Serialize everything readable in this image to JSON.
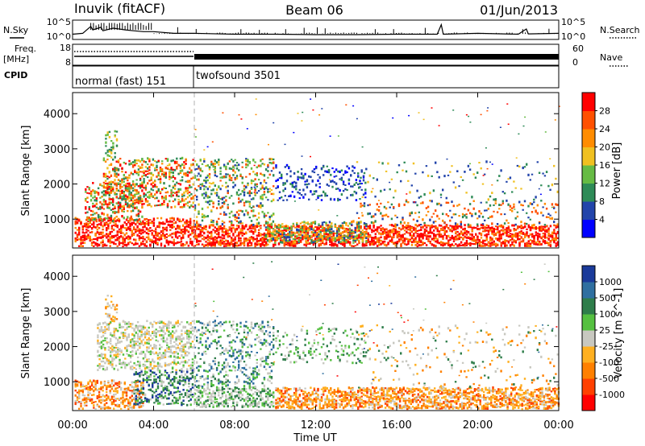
{
  "header": {
    "station": "Inuvik (fitACF)",
    "beam": "Beam 06",
    "date": "01/Jun/2013"
  },
  "colors": {
    "power_scale": [
      "#0000ff",
      "#2244aa",
      "#2e8b57",
      "#66bb44",
      "#f0c020",
      "#ff8c00",
      "#ff5000",
      "#ff0000"
    ],
    "velocity_scale": [
      "#1a3a9a",
      "#2f6fa0",
      "#2e7d4a",
      "#55c040",
      "#c8c8c0",
      "#ffb020",
      "#ff8000",
      "#ff4000",
      "#ff0000"
    ],
    "line": "#000000",
    "guide": "#b0b0b0"
  },
  "chart_data": [
    {
      "type": "line",
      "name": "nsky-panel",
      "left_label": "N.Sky",
      "right_label": "N.Search",
      "left_ticks": [
        "10^5",
        "10^0"
      ],
      "right_ticks": [
        "10^5",
        "10^0"
      ],
      "x_range_hours": [
        0,
        24
      ],
      "series": [
        {
          "x_hours": [
            0,
            0.5,
            0.9,
            1.0,
            1.4,
            1.5,
            2.0,
            2.3,
            2.6,
            3.0,
            3.5,
            4.0,
            5.0,
            6.0,
            8.0,
            10.0,
            12.0,
            14.0,
            16.0,
            18.0,
            18.2,
            18.3,
            20.0,
            22.0,
            22.4,
            22.5,
            24.0
          ],
          "y_level": [
            0.3,
            0.35,
            0.75,
            0.55,
            0.7,
            0.5,
            0.65,
            0.6,
            0.55,
            0.5,
            0.45,
            0.45,
            0.35,
            0.35,
            0.3,
            0.3,
            0.28,
            0.28,
            0.3,
            0.3,
            0.85,
            0.3,
            0.35,
            0.3,
            0.6,
            0.32,
            0.35
          ]
        }
      ]
    },
    {
      "type": "line",
      "name": "freq-panel",
      "left_label": "Freq.",
      "left_unit": "[MHz]",
      "right_label": "Nave",
      "left_ticks": [
        "18",
        "8"
      ],
      "right_ticks": [
        "60",
        "0"
      ],
      "x_range_hours": [
        0,
        24
      ]
    },
    {
      "type": "table",
      "name": "cpid-bar",
      "label": "CPID",
      "segments": [
        {
          "label": "normal (fast) 151",
          "start_hour": 0,
          "end_hour": 6
        },
        {
          "label": "twofsound 3501",
          "start_hour": 6,
          "end_hour": 24
        }
      ]
    },
    {
      "type": "heatmap",
      "name": "power-panel",
      "ylabel": "Slant Range [km]",
      "y_ticks": [
        "1000",
        "2000",
        "3000",
        "4000"
      ],
      "ylim": [
        180,
        4600
      ],
      "colorbar_label": "Power [dB]",
      "colorbar_ticks": [
        "4",
        "8",
        "12",
        "16",
        "20",
        "24",
        "28"
      ],
      "colorbar_range": [
        0,
        32
      ]
    },
    {
      "type": "heatmap",
      "name": "velocity-panel",
      "ylabel": "Slant Range [km]",
      "y_ticks": [
        "1000",
        "2000",
        "3000",
        "4000"
      ],
      "ylim": [
        180,
        4600
      ],
      "colorbar_label": "Velocity [m s^-1]",
      "colorbar_ticks": [
        "1000",
        "500",
        "100",
        "25",
        "-25",
        "-100",
        "-500",
        "-1000"
      ],
      "xlabel": "Time UT",
      "x_ticks": [
        "00:00",
        "04:00",
        "08:00",
        "12:00",
        "16:00",
        "20:00",
        "00:00"
      ],
      "x_range_hours": [
        0,
        24
      ]
    }
  ]
}
